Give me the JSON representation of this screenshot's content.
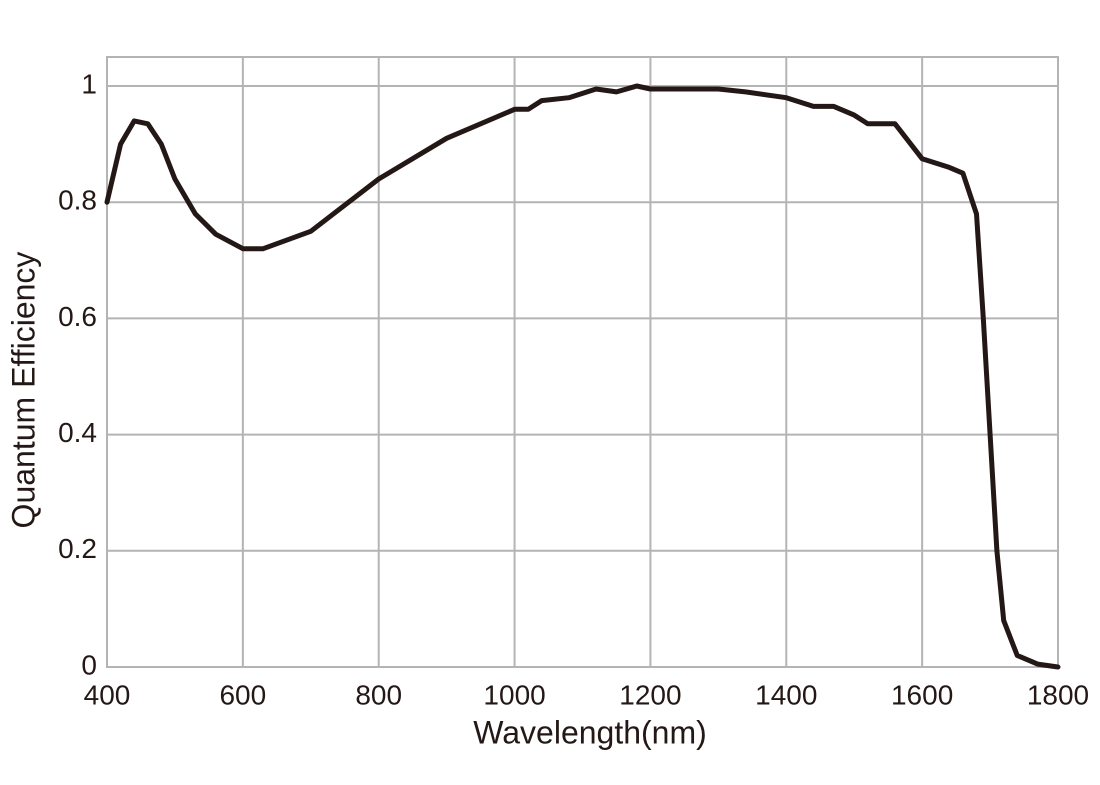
{
  "chart_data": {
    "type": "line",
    "x_label": "Wavelength(nm)",
    "y_label": "Quantum Efficiency",
    "x": [
      400,
      420,
      440,
      460,
      480,
      500,
      530,
      560,
      600,
      630,
      700,
      800,
      900,
      1000,
      1020,
      1040,
      1080,
      1120,
      1150,
      1180,
      1200,
      1300,
      1340,
      1400,
      1440,
      1470,
      1500,
      1520,
      1560,
      1600,
      1640,
      1660,
      1680,
      1690,
      1700,
      1710,
      1720,
      1740,
      1770,
      1800
    ],
    "series": [
      {
        "color": "#231815",
        "values": [
          0.8,
          0.9,
          0.94,
          0.935,
          0.9,
          0.84,
          0.78,
          0.745,
          0.72,
          0.72,
          0.75,
          0.84,
          0.91,
          0.96,
          0.96,
          0.975,
          0.98,
          0.995,
          0.99,
          1.0,
          0.995,
          0.995,
          0.99,
          0.98,
          0.965,
          0.965,
          0.95,
          0.935,
          0.935,
          0.875,
          0.86,
          0.85,
          0.78,
          0.6,
          0.4,
          0.2,
          0.08,
          0.02,
          0.005,
          0
        ]
      }
    ],
    "xlim": [
      400,
      1800
    ],
    "ylim": [
      0,
      1.05
    ],
    "xticks": [
      400,
      600,
      800,
      1000,
      1200,
      1400,
      1600,
      1800
    ],
    "yticks": [
      0,
      0.2,
      0.4,
      0.6,
      0.8,
      1
    ],
    "grid": true
  }
}
